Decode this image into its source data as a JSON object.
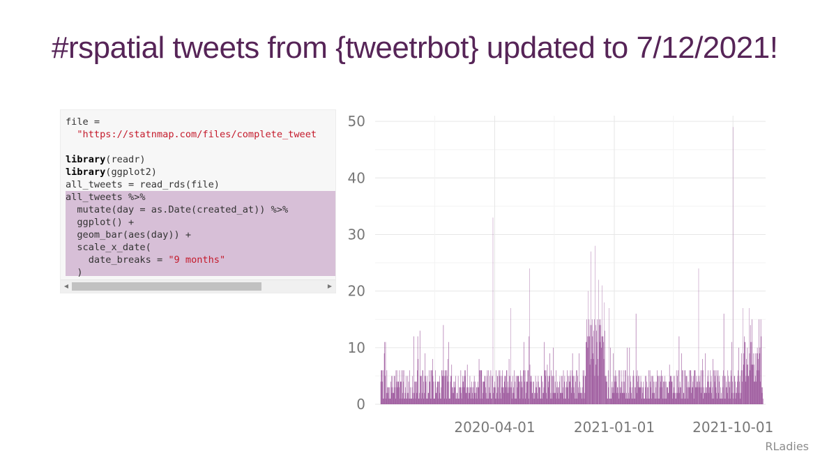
{
  "slide": {
    "title": "#rspatial tweets from {tweetrbot} updated to 7/12/2021!",
    "footer": "RLadies"
  },
  "code": {
    "lines": [
      {
        "text": "file =",
        "kind": "plain"
      },
      {
        "text": "  \"https://statnmap.com/files/complete_tweet",
        "kind": "string"
      },
      {
        "text": "",
        "kind": "plain"
      },
      {
        "kw": "library",
        "rest": "(readr)",
        "kind": "keyword"
      },
      {
        "kw": "library",
        "rest": "(ggplot2)",
        "kind": "keyword"
      },
      {
        "text": "all_tweets = read_rds(file)",
        "kind": "plain"
      },
      {
        "text": "all_tweets %>%",
        "kind": "plain"
      },
      {
        "text": "  mutate(day = as.Date(created_at)) %>%",
        "kind": "plain"
      },
      {
        "text": "  ggplot() +",
        "kind": "plain"
      },
      {
        "text": "  geom_bar(aes(day)) +",
        "kind": "plain"
      },
      {
        "text": "  scale_x_date(",
        "kind": "plain"
      },
      {
        "pre": "    date_breaks = ",
        "str": "\"9 months\"",
        "kind": "mixed"
      },
      {
        "text": "  )",
        "kind": "plain"
      }
    ],
    "highlight_from_line": 6,
    "scroll_fraction_visible": 0.71
  },
  "chart_data": {
    "type": "bar",
    "title": "",
    "xlabel": "",
    "ylabel": "",
    "bar_color": "#8b3a8b",
    "x_range": [
      "2019-07-01",
      "2021-12-15"
    ],
    "ylim": [
      0,
      51
    ],
    "y_ticks": [
      0,
      10,
      20,
      30,
      40,
      50
    ],
    "x_ticks": [
      "2020-04-01",
      "2021-01-01",
      "2021-10-01"
    ],
    "grid": true,
    "notable_peaks": [
      {
        "date": "2019-07-22",
        "value": 9
      },
      {
        "date": "2019-09-28",
        "value": 12
      },
      {
        "date": "2019-10-12",
        "value": 13
      },
      {
        "date": "2019-12-05",
        "value": 14
      },
      {
        "date": "2020-03-28",
        "value": 33
      },
      {
        "date": "2020-05-08",
        "value": 17
      },
      {
        "date": "2020-06-20",
        "value": 24
      },
      {
        "date": "2020-11-08",
        "value": 27
      },
      {
        "date": "2020-11-18",
        "value": 28
      },
      {
        "date": "2020-11-26",
        "value": 22
      },
      {
        "date": "2020-12-04",
        "value": 21
      },
      {
        "date": "2020-12-20",
        "value": 17
      },
      {
        "date": "2021-02-20",
        "value": 16
      },
      {
        "date": "2021-07-14",
        "value": 24
      },
      {
        "date": "2021-09-10",
        "value": 16
      },
      {
        "date": "2021-10-01",
        "value": 49
      },
      {
        "date": "2021-10-24",
        "value": 17
      },
      {
        "date": "2021-11-14",
        "value": 15
      },
      {
        "date": "2021-11-30",
        "value": 15
      }
    ],
    "baseline_range": [
      1,
      6
    ],
    "dense_periods": [
      {
        "from": "2020-10-28",
        "to": "2020-12-10",
        "range": [
          7,
          15
        ]
      },
      {
        "from": "2021-10-20",
        "to": "2021-12-05",
        "range": [
          4,
          12
        ]
      }
    ]
  }
}
